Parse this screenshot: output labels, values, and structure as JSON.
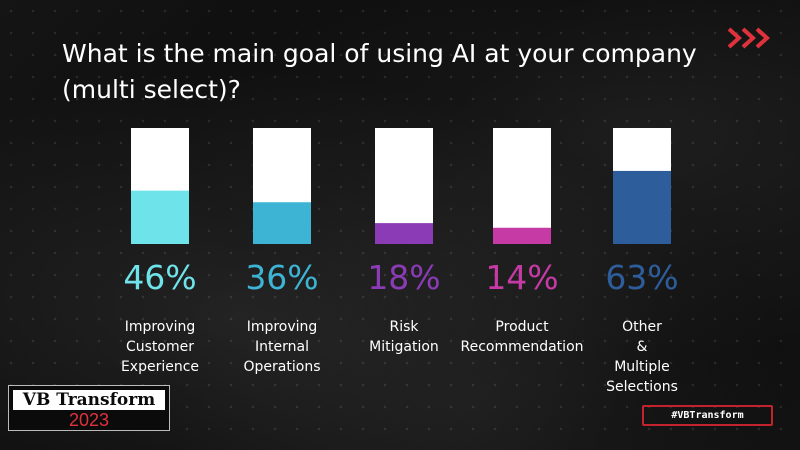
{
  "slide": {
    "title": "What is the main goal of using AI at your company (multi select)?",
    "logo_icon": "chevron-double-right-icon",
    "logo_color": "#e0323c",
    "brand_name": "VB Transform",
    "brand_year": "2023",
    "hashtag": "#VBTransform"
  },
  "chart_data": {
    "type": "bar",
    "title": "What is the main goal of using AI at your company (multi select)?",
    "ylim": [
      0,
      100
    ],
    "grid": false,
    "legend": "none",
    "track_color": "#ffffff",
    "categories": [
      [
        "Improving",
        "Customer",
        "Experience"
      ],
      [
        "Improving",
        "Internal",
        "Operations"
      ],
      [
        "Risk",
        "Mitigation"
      ],
      [
        "Product",
        "Recommendation"
      ],
      [
        "Other",
        "&",
        "Multiple",
        "Selections"
      ]
    ],
    "values": [
      46,
      36,
      18,
      14,
      63
    ],
    "value_labels": [
      "46%",
      "36%",
      "18%",
      "14%",
      "63%"
    ],
    "colors": [
      "#6fe3ea",
      "#3db4d4",
      "#8a3bb5",
      "#c63aa6",
      "#2e5d9c"
    ]
  }
}
